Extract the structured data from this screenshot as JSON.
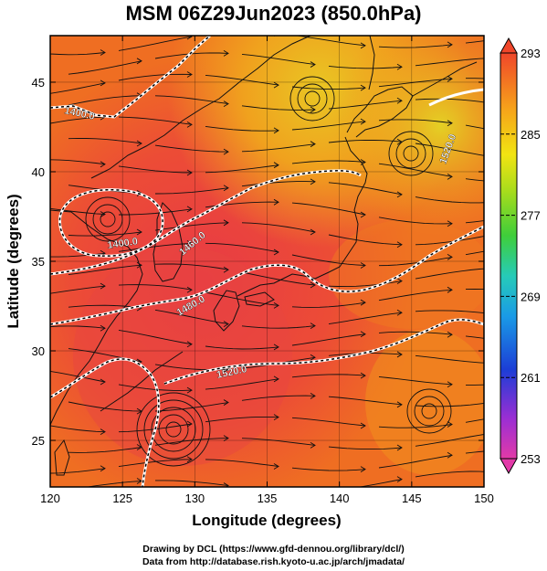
{
  "title": "MSM 06Z29Jun2023 (850.0hPa)",
  "map": {
    "x_axis_label": "Longitude (degrees)",
    "y_axis_label": "Latitude  (degrees)",
    "lon_range": [
      120,
      150
    ],
    "lat_range": [
      22.4,
      47.6
    ],
    "lon_ticks": [
      "120",
      "125",
      "130",
      "135",
      "140",
      "145",
      "150"
    ],
    "lat_ticks": [
      "25",
      "30",
      "35",
      "40",
      "45"
    ],
    "contour_labels": [
      "1400.0",
      "1400.0",
      "1460.0",
      "1480.0",
      "1520.0",
      "1520.0"
    ],
    "colors": {
      "warm_core": "#e8463c",
      "orange": "#f07a1e",
      "yellow": "#e8c820",
      "contour": "#ffffff",
      "streamline": "#111111"
    }
  },
  "colorbar": {
    "min": 253,
    "max": 293,
    "ticks": [
      "293",
      "285",
      "277",
      "269",
      "261",
      "253"
    ],
    "colors": [
      "#e23aa8",
      "#8a2bd8",
      "#1c3ed6",
      "#1fa6e8",
      "#27c9b4",
      "#3fce3a",
      "#a8dc1c",
      "#f0e414",
      "#f6a41a",
      "#f0582a"
    ]
  },
  "credits": {
    "line1": "Drawing by DCL (https://www.gfd-dennou.org/library/dcl/)",
    "line2": "Data from http://database.rish.kyoto-u.ac.jp/arch/jmadata/"
  }
}
